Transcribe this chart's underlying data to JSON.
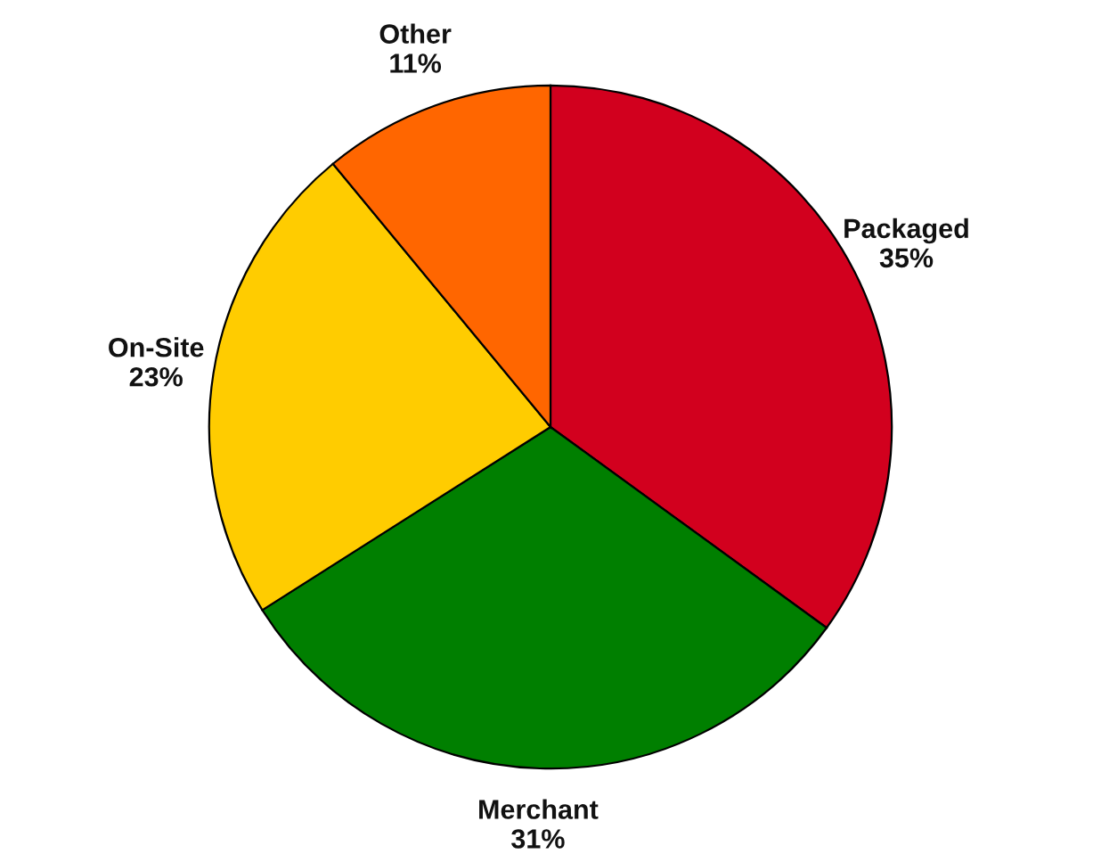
{
  "chart_data": {
    "type": "pie",
    "categories": [
      "Packaged",
      "Merchant",
      "On-Site",
      "Other"
    ],
    "values": [
      35,
      31,
      23,
      11
    ],
    "value_labels": [
      "35%",
      "31%",
      "23%",
      "11%"
    ],
    "colors": [
      "#d2001e",
      "#007f00",
      "#ffcc00",
      "#ff6600"
    ]
  }
}
